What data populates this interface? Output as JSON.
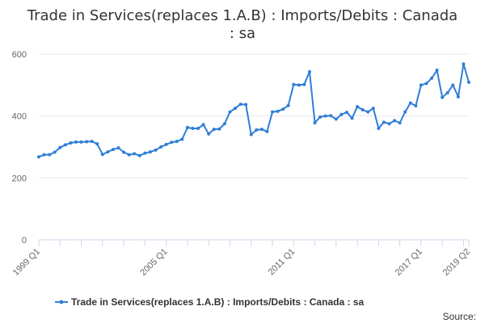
{
  "chart_data": {
    "type": "line",
    "title_lines": [
      "Trade in Services(replaces 1.A.B) : Imports/Debits : Canada",
      ": sa"
    ],
    "xlabel": "",
    "ylabel": "",
    "ylim": [
      0,
      600
    ],
    "y_ticks": [
      "0",
      "200",
      "400",
      "600"
    ],
    "x_tick_labels": [
      "1999 Q1",
      "2005 Q1",
      "2011 Q1",
      "2017 Q1",
      "2019 Q2"
    ],
    "x_tick_positions": [
      0,
      24,
      48,
      72,
      81
    ],
    "grid": true,
    "legend_position": "bottom",
    "source_label": "Source:",
    "color": "#2f7ed8",
    "series": [
      {
        "name": "Trade in Services(replaces 1.A.B) : Imports/Debits : Canada : sa",
        "x": [
          "1999 Q1",
          "1999 Q2",
          "1999 Q3",
          "1999 Q4",
          "2000 Q1",
          "2000 Q2",
          "2000 Q3",
          "2000 Q4",
          "2001 Q1",
          "2001 Q2",
          "2001 Q3",
          "2001 Q4",
          "2002 Q1",
          "2002 Q2",
          "2002 Q3",
          "2002 Q4",
          "2003 Q1",
          "2003 Q2",
          "2003 Q3",
          "2003 Q4",
          "2004 Q1",
          "2004 Q2",
          "2004 Q3",
          "2004 Q4",
          "2005 Q1",
          "2005 Q2",
          "2005 Q3",
          "2005 Q4",
          "2006 Q1",
          "2006 Q2",
          "2006 Q3",
          "2006 Q4",
          "2007 Q1",
          "2007 Q2",
          "2007 Q3",
          "2007 Q4",
          "2008 Q1",
          "2008 Q2",
          "2008 Q3",
          "2008 Q4",
          "2009 Q1",
          "2009 Q2",
          "2009 Q3",
          "2009 Q4",
          "2010 Q1",
          "2010 Q2",
          "2010 Q3",
          "2010 Q4",
          "2011 Q1",
          "2011 Q2",
          "2011 Q3",
          "2011 Q4",
          "2012 Q1",
          "2012 Q2",
          "2012 Q3",
          "2012 Q4",
          "2013 Q1",
          "2013 Q2",
          "2013 Q3",
          "2013 Q4",
          "2014 Q1",
          "2014 Q2",
          "2014 Q3",
          "2014 Q4",
          "2015 Q1",
          "2015 Q2",
          "2015 Q3",
          "2015 Q4",
          "2016 Q1",
          "2016 Q2",
          "2016 Q3",
          "2016 Q4",
          "2017 Q1",
          "2017 Q2",
          "2017 Q3",
          "2017 Q4",
          "2018 Q1",
          "2018 Q2",
          "2018 Q3",
          "2018 Q4",
          "2019 Q1",
          "2019 Q2"
        ],
        "values": [
          268,
          275,
          275,
          283,
          298,
          307,
          313,
          316,
          316,
          317,
          318,
          310,
          276,
          284,
          292,
          297,
          283,
          275,
          278,
          272,
          280,
          284,
          290,
          300,
          308,
          315,
          318,
          325,
          363,
          360,
          360,
          372,
          342,
          357,
          358,
          375,
          413,
          425,
          438,
          437,
          340,
          355,
          357,
          350,
          413,
          415,
          422,
          434,
          502,
          500,
          502,
          543,
          378,
          397,
          400,
          401,
          390,
          405,
          412,
          393,
          430,
          420,
          413,
          425,
          360,
          380,
          375,
          385,
          378,
          413,
          442,
          433,
          500,
          505,
          522,
          548,
          460,
          475,
          500,
          462,
          568,
          509
        ]
      }
    ]
  }
}
